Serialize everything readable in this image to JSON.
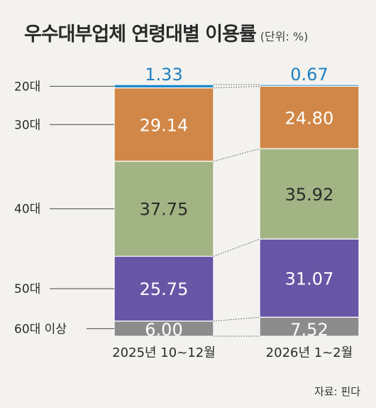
{
  "header": {
    "title": "우수대부업체 연령대별 이용률",
    "unit": "(단위: %)"
  },
  "source": "자료: 핀다",
  "chart_data": {
    "type": "bar",
    "stacked": true,
    "title": "우수대부업체 연령대별 이용률",
    "unit": "(단위: %)",
    "categories": [
      "2025년 10~12월",
      "2026년 1~2월"
    ],
    "series": [
      {
        "name": "20대",
        "values": [
          1.33,
          0.67
        ],
        "color": "#1e88c8"
      },
      {
        "name": "30대",
        "values": [
          29.14,
          24.8
        ],
        "color": "#d08747"
      },
      {
        "name": "40대",
        "values": [
          37.75,
          35.92
        ],
        "color": "#a3b484"
      },
      {
        "name": "50대",
        "values": [
          25.75,
          31.07
        ],
        "color": "#6756a6"
      },
      {
        "name": "60대 이상",
        "values": [
          6.0,
          7.52
        ],
        "color": "#8c8c8c"
      }
    ],
    "value_labels": [
      [
        "1.33",
        "29.14",
        "37.75",
        "25.75",
        "6.00"
      ],
      [
        "0.67",
        "24.80",
        "35.92",
        "31.07",
        "7.52"
      ]
    ],
    "label_colors": {
      "top": "#1e7fc0",
      "dark": "#2b2b2b",
      "light": "#ffffff"
    },
    "legend": "left"
  }
}
